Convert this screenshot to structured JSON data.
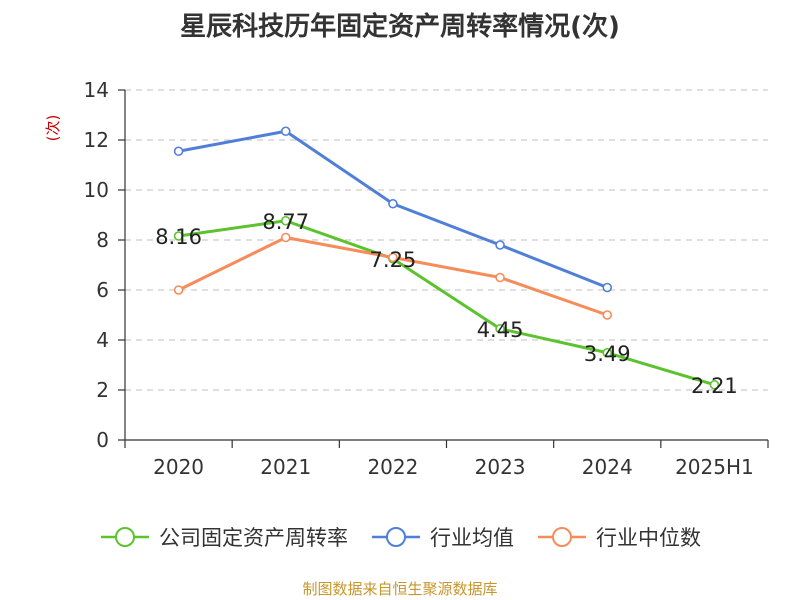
{
  "title": "星辰科技历年固定资产周转率情况(次)",
  "source": "制图数据来自恒生聚源数据库",
  "colors": {
    "source_text": "#c8962c",
    "ylabel": "#cc0000",
    "grid": "#cccccc",
    "axis": "#333333"
  },
  "chart_data": {
    "type": "line",
    "title": "星辰科技历年固定资产周转率情况(次)",
    "ylabel": "(次)",
    "xlabel": "",
    "categories": [
      "2020",
      "2021",
      "2022",
      "2023",
      "2024",
      "2025H1"
    ],
    "ylim": [
      0,
      14
    ],
    "yticks": [
      0,
      2,
      4,
      6,
      8,
      10,
      12,
      14
    ],
    "grid": true,
    "legend": "bottom",
    "series": [
      {
        "name": "公司固定资产周转率",
        "color": "#5cc22e",
        "values": [
          8.16,
          8.77,
          7.25,
          4.45,
          3.49,
          2.21
        ],
        "labels": [
          "8.16",
          "8.77",
          "7.25",
          "4.45",
          "3.49",
          "2.21"
        ]
      },
      {
        "name": "行业均值",
        "color": "#4f7fd8",
        "values": [
          11.55,
          12.35,
          9.45,
          7.8,
          6.1,
          null
        ]
      },
      {
        "name": "行业中位数",
        "color": "#f58c5a",
        "values": [
          6.0,
          8.1,
          7.3,
          6.5,
          5.0,
          null
        ]
      }
    ]
  }
}
